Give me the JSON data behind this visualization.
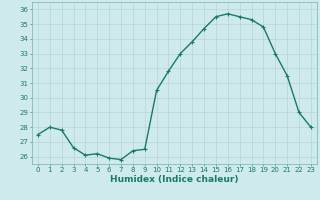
{
  "x": [
    0,
    1,
    2,
    3,
    4,
    5,
    6,
    7,
    8,
    9,
    10,
    11,
    12,
    13,
    14,
    15,
    16,
    17,
    18,
    19,
    20,
    21,
    22,
    23
  ],
  "y": [
    27.5,
    28.0,
    27.8,
    26.6,
    26.1,
    26.2,
    25.9,
    25.8,
    26.4,
    26.5,
    30.5,
    31.8,
    33.0,
    33.8,
    34.7,
    35.5,
    35.7,
    35.5,
    35.3,
    34.8,
    33.0,
    31.5,
    29.0,
    28.0
  ],
  "line_color": "#1a7a6a",
  "marker": "+",
  "markersize": 3.5,
  "linewidth": 1.0,
  "xlabel": "Humidex (Indice chaleur)",
  "xlim": [
    -0.5,
    23.5
  ],
  "ylim": [
    25.5,
    36.5
  ],
  "yticks": [
    26,
    27,
    28,
    29,
    30,
    31,
    32,
    33,
    34,
    35,
    36
  ],
  "xticks": [
    0,
    1,
    2,
    3,
    4,
    5,
    6,
    7,
    8,
    9,
    10,
    11,
    12,
    13,
    14,
    15,
    16,
    17,
    18,
    19,
    20,
    21,
    22,
    23
  ],
  "bg_color": "#ceeaea",
  "grid_color": "#b8d4d4",
  "tick_fontsize": 5.0,
  "xlabel_fontsize": 6.5,
  "label_color": "#1a7a6a",
  "spine_color": "#7ab0b0"
}
